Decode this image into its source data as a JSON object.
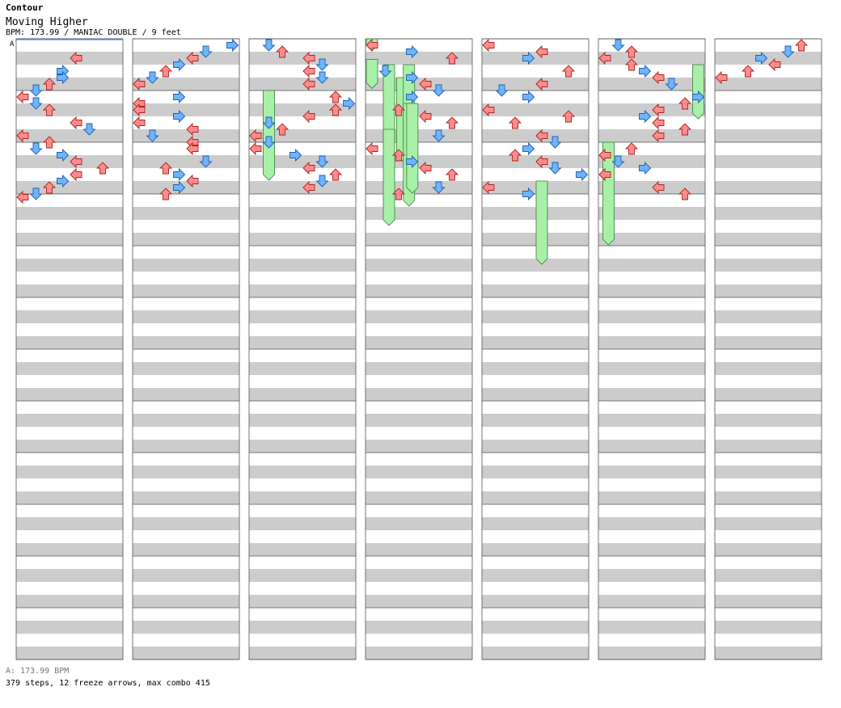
{
  "header": {
    "artist": "Contour",
    "title": "Moving Higher",
    "meta": "BPM: 173.99 / MANIAC DOUBLE / 9 feet"
  },
  "footer": {
    "bpm_legend": "A: 173.99 BPM",
    "stats": "379 steps, 12 freeze arrows, max combo 415"
  },
  "chart_data": {
    "type": "step-chart",
    "title": "Moving Higher",
    "artist": "Contour",
    "bpm": 173.99,
    "difficulty": "MANIAC",
    "style": "DOUBLE",
    "feet": 9,
    "columns": 7,
    "measures_per_column": 12,
    "panels": [
      "left",
      "down",
      "up",
      "right",
      "left",
      "down",
      "up",
      "right"
    ],
    "bpm_marker": {
      "label": "A",
      "bpm": 173.99,
      "column": 0,
      "beat": 0
    },
    "steps": 379,
    "freeze_arrows": 12,
    "max_combo": 415,
    "colors": {
      "quarter": "#ff8c8c",
      "eighth": "#6eb4ff",
      "sixteenth": "#ff9cf0",
      "freeze": "#a8f0a8",
      "band": "#cccccc",
      "bpm_line": "#5d8bff"
    },
    "notes": [
      [
        0,
        1,
        4,
        7
      ],
      [
        0,
        2,
        3,
        4
      ],
      [
        0,
        2.5,
        3,
        5
      ],
      [
        0,
        3,
        2,
        4
      ],
      [
        0,
        3.5,
        1,
        5
      ],
      [
        0,
        4,
        0,
        4
      ],
      [
        0,
        4.5,
        1,
        6
      ],
      [
        0,
        5,
        2,
        4
      ],
      [
        0,
        6,
        4,
        6
      ],
      [
        0,
        6.5,
        5,
        4
      ],
      [
        0,
        7,
        0,
        5
      ],
      [
        0,
        7.5,
        2,
        5
      ],
      [
        0,
        8,
        1,
        4
      ],
      [
        0,
        8.5,
        3,
        4
      ],
      [
        0,
        9,
        4,
        5
      ],
      [
        0,
        9.5,
        6,
        6
      ],
      [
        0,
        10,
        4,
        7
      ],
      [
        0,
        10.5,
        3,
        6
      ],
      [
        0,
        11,
        2,
        4
      ],
      [
        0,
        11.5,
        1,
        5
      ],
      [
        0,
        11.75,
        0,
        5
      ],
      [
        1,
        0,
        7,
        4
      ],
      [
        1,
        0.5,
        5,
        4
      ],
      [
        1,
        1,
        4,
        5
      ],
      [
        1,
        1.5,
        3,
        6
      ],
      [
        1,
        2,
        2,
        4
      ],
      [
        1,
        2.5,
        1,
        5
      ],
      [
        1,
        3,
        0,
        5
      ],
      [
        1,
        4,
        3,
        4
      ],
      [
        1,
        4.5,
        0,
        6
      ],
      [
        1,
        5,
        0,
        4
      ],
      [
        1,
        5.5,
        3,
        6
      ],
      [
        1,
        6,
        0,
        4
      ],
      [
        1,
        6.5,
        4,
        5
      ],
      [
        1,
        7,
        1,
        4
      ],
      [
        1,
        7.5,
        4,
        6
      ],
      [
        1,
        8,
        4,
        7
      ],
      [
        1,
        9,
        5,
        4
      ],
      [
        1,
        9.5,
        2,
        5
      ],
      [
        1,
        10,
        3,
        6
      ],
      [
        1,
        10.5,
        4,
        7
      ],
      [
        1,
        11,
        3,
        6
      ],
      [
        1,
        11.5,
        2,
        5
      ],
      [
        2,
        0,
        1,
        4
      ],
      [
        2,
        0.5,
        2,
        5
      ],
      [
        2,
        1,
        4,
        6
      ],
      [
        2,
        1.5,
        5,
        7
      ],
      [
        2,
        2,
        4,
        6
      ],
      [
        2,
        2.5,
        5,
        4
      ],
      [
        2,
        3,
        4,
        5
      ],
      [
        2,
        4,
        6,
        6
      ],
      [
        2,
        4.5,
        7,
        7
      ],
      [
        2,
        5,
        6,
        6
      ],
      [
        2,
        5.5,
        4,
        5
      ],
      [
        2,
        6,
        1,
        4
      ],
      [
        2,
        6.5,
        2,
        5
      ],
      [
        2,
        7,
        0,
        4
      ],
      [
        2,
        7.5,
        1,
        5
      ],
      [
        2,
        8,
        0,
        4
      ],
      [
        2,
        8.5,
        3,
        6
      ],
      [
        2,
        9,
        5,
        7
      ],
      [
        2,
        9.5,
        4,
        6
      ],
      [
        2,
        10,
        6,
        7
      ],
      [
        2,
        10.5,
        5,
        4
      ],
      [
        2,
        11,
        4,
        7
      ],
      [
        3,
        0,
        0,
        5
      ],
      [
        3,
        0.5,
        3,
        4
      ],
      [
        3,
        1,
        6,
        4
      ],
      [
        3,
        2,
        1,
        4
      ],
      [
        3,
        2.5,
        3,
        7
      ],
      [
        3,
        3,
        4,
        6
      ],
      [
        3,
        3.5,
        5,
        5
      ],
      [
        3,
        4,
        3,
        4
      ],
      [
        3,
        5,
        2,
        5
      ],
      [
        3,
        5.5,
        4,
        6
      ],
      [
        3,
        6,
        6,
        7
      ],
      [
        3,
        7,
        5,
        5
      ],
      [
        3,
        8,
        0,
        4
      ],
      [
        3,
        8.5,
        2,
        5
      ],
      [
        3,
        9,
        3,
        6
      ],
      [
        3,
        9.5,
        4,
        7
      ],
      [
        3,
        10,
        6,
        6
      ],
      [
        3,
        11,
        5,
        4
      ],
      [
        3,
        11.5,
        2,
        5
      ],
      [
        4,
        0,
        0,
        4
      ],
      [
        4,
        0.5,
        4,
        5
      ],
      [
        4,
        1,
        3,
        6
      ],
      [
        4,
        2,
        6,
        7
      ],
      [
        4,
        3,
        4,
        5
      ],
      [
        4,
        3.5,
        1,
        6
      ],
      [
        4,
        4,
        3,
        4
      ],
      [
        4,
        5,
        0,
        5
      ],
      [
        4,
        5.5,
        6,
        6
      ],
      [
        4,
        6,
        2,
        5
      ],
      [
        4,
        7,
        4,
        7
      ],
      [
        4,
        7.5,
        5,
        4
      ],
      [
        4,
        8,
        3,
        6
      ],
      [
        4,
        8.5,
        2,
        5
      ],
      [
        4,
        9,
        4,
        4
      ],
      [
        4,
        9.5,
        5,
        6
      ],
      [
        4,
        10,
        7,
        7
      ],
      [
        4,
        11,
        0,
        4
      ],
      [
        4,
        11.5,
        3,
        5
      ],
      [
        5,
        0,
        1,
        4
      ],
      [
        5,
        0.5,
        2,
        5
      ],
      [
        5,
        1,
        0,
        6
      ],
      [
        5,
        1.5,
        2,
        4
      ],
      [
        5,
        2,
        3,
        5
      ],
      [
        5,
        2.5,
        4,
        6
      ],
      [
        5,
        3,
        5,
        7
      ],
      [
        5,
        4,
        7,
        4
      ],
      [
        5,
        4.5,
        6,
        5
      ],
      [
        5,
        5,
        4,
        4
      ],
      [
        5,
        5.5,
        3,
        6
      ],
      [
        5,
        6,
        4,
        5
      ],
      [
        5,
        6.5,
        6,
        7
      ],
      [
        5,
        7,
        4,
        4
      ],
      [
        5,
        8,
        2,
        5
      ],
      [
        5,
        8.5,
        0,
        4
      ],
      [
        5,
        9,
        1,
        6
      ],
      [
        5,
        9.5,
        3,
        7
      ],
      [
        5,
        10,
        0,
        4
      ],
      [
        5,
        11,
        4,
        5
      ],
      [
        5,
        11.5,
        6,
        6
      ],
      [
        6,
        0,
        6,
        4
      ],
      [
        6,
        0.5,
        5,
        5
      ],
      [
        6,
        1,
        3,
        6
      ],
      [
        6,
        1.5,
        4,
        7
      ],
      [
        6,
        2,
        2,
        4
      ],
      [
        6,
        2.5,
        0,
        5
      ]
    ],
    "freezes": [
      [
        3,
        0,
        0,
        2,
        0.3
      ],
      [
        3,
        0,
        1.6,
        0,
        3.6
      ],
      [
        5,
        7,
        2,
        6,
        7.5
      ],
      [
        4,
        4,
        11,
        10,
        12
      ],
      [
        4,
        9,
        8,
        13,
        15
      ],
      [
        2,
        10,
        2,
        10,
        12
      ],
      [
        2,
        11,
        3,
        10.5,
        12
      ],
      [
        2,
        1,
        4,
        11,
        13
      ],
      [
        2,
        11.5,
        2,
        11,
        13
      ],
      [
        2,
        10,
        7,
        12,
        14
      ],
      [
        2,
        11.5,
        5,
        13,
        15
      ],
      [
        2,
        11.75,
        5,
        11,
        13
      ]
    ]
  }
}
